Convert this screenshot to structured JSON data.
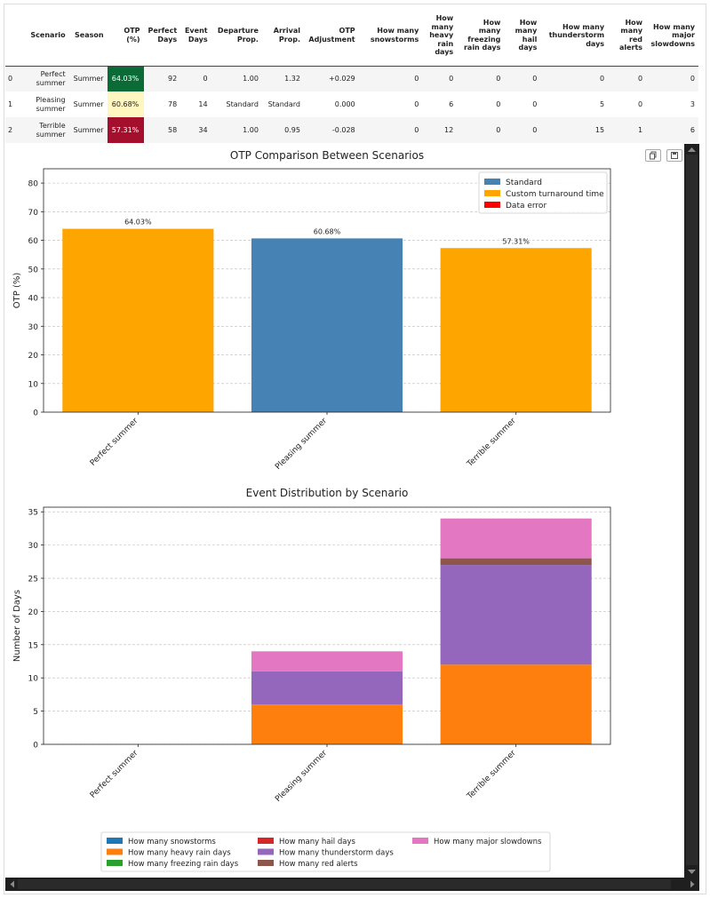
{
  "table": {
    "columns": [
      "",
      "Scenario",
      "Season",
      "OTP (%)",
      "Perfect Days",
      "Event Days",
      "Departure Prop.",
      "Arrival Prop.",
      "OTP Adjustment",
      "How many snowstorms",
      "How many heavy rain days",
      "How many freezing rain days",
      "How many hail days",
      "How many thunderstorm days",
      "How many red alerts",
      "How many major slowdowns"
    ],
    "rows": [
      [
        "0",
        "Perfect summer",
        "Summer",
        "64.03%",
        "92",
        "0",
        "1.00",
        "1.32",
        "+0.029",
        "0",
        "0",
        "0",
        "0",
        "0",
        "0",
        "0"
      ],
      [
        "1",
        "Pleasing summer",
        "Summer",
        "60.68%",
        "78",
        "14",
        "Standard",
        "Standard",
        "0.000",
        "0",
        "6",
        "0",
        "0",
        "5",
        "0",
        "3"
      ],
      [
        "2",
        "Terrible summer",
        "Summer",
        "57.31%",
        "58",
        "34",
        "1.00",
        "0.95",
        "-0.028",
        "0",
        "12",
        "0",
        "0",
        "15",
        "1",
        "6"
      ]
    ],
    "otp_colors": [
      "#0a6b36",
      "#fff6c0",
      "#a40f2e"
    ]
  },
  "chart_data": [
    {
      "type": "bar",
      "title": "OTP Comparison Between Scenarios",
      "xlabel": "",
      "ylabel": "OTP (%)",
      "categories": [
        "Perfect summer",
        "Pleasing summer",
        "Terrible summer"
      ],
      "values": [
        64.03,
        60.68,
        57.31
      ],
      "data_labels": [
        "64.03%",
        "60.68%",
        "57.31%"
      ],
      "bar_colors": [
        "#ffa500",
        "#4682b4",
        "#ffa500"
      ],
      "ylim": [
        0,
        85
      ],
      "yticks": [
        0,
        10,
        20,
        30,
        40,
        50,
        60,
        70,
        80
      ],
      "grid": true,
      "legend": {
        "placement": "top-right",
        "entries": [
          {
            "label": "Standard",
            "color": "#4682b4"
          },
          {
            "label": "Custom turnaround time",
            "color": "#ffa500"
          },
          {
            "label": "Data error",
            "color": "#ff0000"
          }
        ]
      }
    },
    {
      "type": "bar",
      "stacked": true,
      "title": "Event Distribution by Scenario",
      "xlabel": "",
      "ylabel": "Number of Days",
      "categories": [
        "Perfect summer",
        "Pleasing summer",
        "Terrible summer"
      ],
      "ylim": [
        0,
        35.7
      ],
      "yticks": [
        0,
        5,
        10,
        15,
        20,
        25,
        30,
        35
      ],
      "grid": true,
      "series": [
        {
          "name": "How many snowstorms",
          "color": "#1f77b4",
          "values": [
            0,
            0,
            0
          ]
        },
        {
          "name": "How many heavy rain days",
          "color": "#ff7f0e",
          "values": [
            0,
            6,
            12
          ]
        },
        {
          "name": "How many freezing rain days",
          "color": "#2ca02c",
          "values": [
            0,
            0,
            0
          ]
        },
        {
          "name": "How many hail days",
          "color": "#d62728",
          "values": [
            0,
            0,
            0
          ]
        },
        {
          "name": "How many thunderstorm days",
          "color": "#9467bd",
          "values": [
            0,
            5,
            15
          ]
        },
        {
          "name": "How many red alerts",
          "color": "#8c564b",
          "values": [
            0,
            0,
            1
          ]
        },
        {
          "name": "How many major slowdowns",
          "color": "#e377c2",
          "values": [
            0,
            3,
            6
          ]
        }
      ],
      "legend": {
        "placement": "bottom-center"
      }
    }
  ],
  "toolbar": {
    "icons": [
      "copy-icon",
      "save-icon"
    ]
  },
  "scrollbars": {
    "icons": [
      "scroll-up-arrow-icon",
      "scroll-down-arrow-icon",
      "scroll-left-arrow-icon",
      "scroll-right-arrow-icon"
    ]
  }
}
